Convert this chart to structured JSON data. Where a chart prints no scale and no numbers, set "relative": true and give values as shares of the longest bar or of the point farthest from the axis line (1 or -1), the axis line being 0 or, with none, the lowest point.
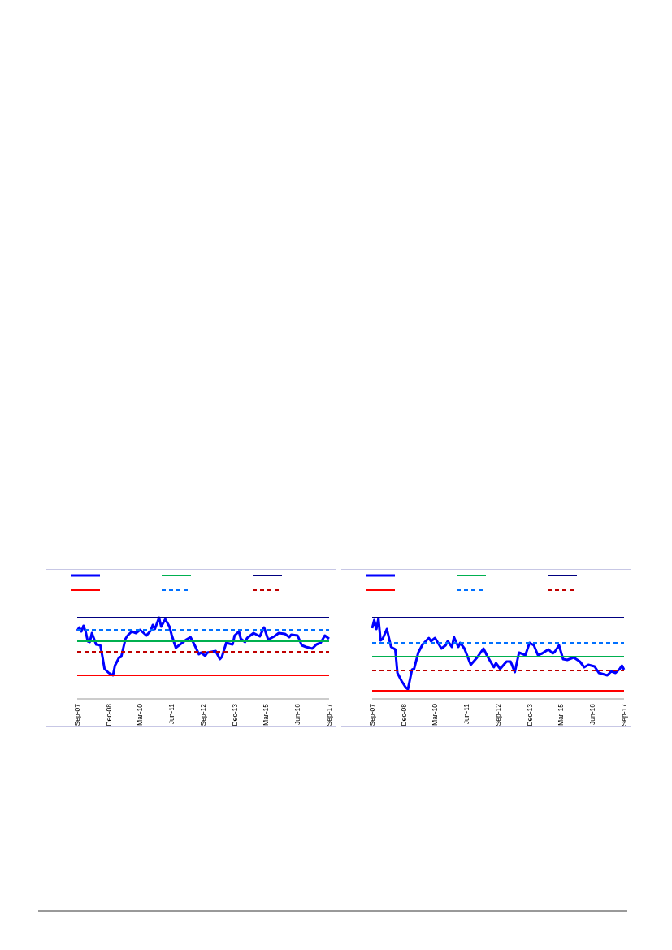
{
  "chart_data": [
    {
      "type": "line",
      "relative": true,
      "tick_labels": "x",
      "xlim": [
        "2007-09",
        "2017-09"
      ],
      "xticks": [
        {
          "value": "2007-09",
          "label": "Sep-07"
        },
        {
          "value": "2008-12",
          "label": "Dec-08"
        },
        {
          "value": "2010-03",
          "label": "Mar-10"
        },
        {
          "value": "2011-06",
          "label": "Jun-11"
        },
        {
          "value": "2012-09",
          "label": "Sep-12"
        },
        {
          "value": "2013-12",
          "label": "Dec-13"
        },
        {
          "value": "2015-03",
          "label": "Mar-15"
        },
        {
          "value": "2016-06",
          "label": "Jun-16"
        },
        {
          "value": "2017-09",
          "label": "Sep-17"
        }
      ],
      "series": [
        {
          "color": "#0000ff",
          "x": [
            "2007-09",
            "2007-10",
            "2007-11",
            "2007-12",
            "2008-01",
            "2008-02",
            "2008-03",
            "2008-04",
            "2008-06",
            "2008-08",
            "2008-09",
            "2008-10",
            "2008-12",
            "2009-02",
            "2009-03",
            "2009-05",
            "2009-06",
            "2009-08",
            "2009-09",
            "2009-11",
            "2010-01",
            "2010-03",
            "2010-06",
            "2010-08",
            "2010-09",
            "2010-10",
            "2010-12",
            "2011-01",
            "2011-03",
            "2011-05",
            "2011-06",
            "2011-08",
            "2011-10",
            "2012-01",
            "2012-03",
            "2012-05",
            "2012-07",
            "2012-08",
            "2012-10",
            "2012-11",
            "2013-03",
            "2013-05",
            "2013-06",
            "2013-08",
            "2013-11",
            "2013-12",
            "2014-02",
            "2014-03",
            "2014-05",
            "2014-06",
            "2014-09",
            "2014-12",
            "2015-02",
            "2015-04",
            "2015-07",
            "2015-09",
            "2015-12",
            "2016-02",
            "2016-03",
            "2016-06",
            "2016-08",
            "2016-10",
            "2017-01",
            "2017-03",
            "2017-05",
            "2017-07",
            "2017-09"
          ],
          "values": [
            0.84,
            0.88,
            0.83,
            0.9,
            0.83,
            0.71,
            0.7,
            0.81,
            0.67,
            0.66,
            0.52,
            0.37,
            0.32,
            0.29,
            0.41,
            0.51,
            0.52,
            0.74,
            0.78,
            0.83,
            0.81,
            0.85,
            0.78,
            0.84,
            0.91,
            0.86,
            1.0,
            0.89,
            0.98,
            0.89,
            0.79,
            0.63,
            0.67,
            0.73,
            0.76,
            0.66,
            0.55,
            0.57,
            0.53,
            0.57,
            0.59,
            0.49,
            0.52,
            0.69,
            0.67,
            0.78,
            0.83,
            0.74,
            0.7,
            0.75,
            0.81,
            0.77,
            0.88,
            0.73,
            0.77,
            0.81,
            0.8,
            0.76,
            0.79,
            0.78,
            0.66,
            0.64,
            0.62,
            0.67,
            0.69,
            0.78,
            0.74
          ]
        },
        {
          "color": "#00b050",
          "x": [
            "2007-09",
            "2017-09"
          ],
          "values": [
            0.71,
            0.71
          ]
        },
        {
          "color": "#000080",
          "x": [
            "2007-09",
            "2017-09"
          ],
          "values": [
            1.0,
            1.0
          ]
        },
        {
          "color": "#ff0000",
          "x": [
            "2007-09",
            "2017-09"
          ],
          "values": [
            0.29,
            0.29
          ]
        },
        {
          "color": "#0070ff",
          "x": [
            "2007-09",
            "2017-09"
          ],
          "values": [
            0.85,
            0.85
          ],
          "line_style": "dashed"
        },
        {
          "color": "#c00000",
          "x": [
            "2007-09",
            "2017-09"
          ],
          "values": [
            0.58,
            0.58
          ],
          "line_style": "dashed"
        }
      ]
    },
    {
      "type": "line",
      "relative": true,
      "tick_labels": "x",
      "xlim": [
        "2007-09",
        "2017-09"
      ],
      "xticks": [
        {
          "value": "2007-09",
          "label": "Sep-07"
        },
        {
          "value": "2008-12",
          "label": "Dec-08"
        },
        {
          "value": "2010-03",
          "label": "Mar-10"
        },
        {
          "value": "2011-06",
          "label": "Jun-11"
        },
        {
          "value": "2012-09",
          "label": "Sep-12"
        },
        {
          "value": "2013-12",
          "label": "Dec-13"
        },
        {
          "value": "2015-03",
          "label": "Mar-15"
        },
        {
          "value": "2016-06",
          "label": "Jun-16"
        },
        {
          "value": "2017-09",
          "label": "Sep-17"
        }
      ],
      "series": [
        {
          "color": "#0000ff",
          "x": [
            "2007-09",
            "2007-10",
            "2007-11",
            "2007-12",
            "2008-01",
            "2008-02",
            "2008-04",
            "2008-06",
            "2008-08",
            "2008-09",
            "2008-11",
            "2009-01",
            "2009-02",
            "2009-04",
            "2009-05",
            "2009-07",
            "2009-09",
            "2009-12",
            "2010-01",
            "2010-03",
            "2010-06",
            "2010-08",
            "2010-09",
            "2010-11",
            "2010-12",
            "2011-02",
            "2011-03",
            "2011-05",
            "2011-08",
            "2011-11",
            "2012-02",
            "2012-04",
            "2012-07",
            "2012-08",
            "2012-10",
            "2013-01",
            "2013-03",
            "2013-05",
            "2013-07",
            "2013-10",
            "2013-12",
            "2014-02",
            "2014-04",
            "2014-06",
            "2014-09",
            "2014-11",
            "2014-12",
            "2015-02",
            "2015-04",
            "2015-06",
            "2015-09",
            "2015-12",
            "2016-02",
            "2016-04",
            "2016-07",
            "2016-09",
            "2017-01",
            "2017-03",
            "2017-05",
            "2017-07",
            "2017-08",
            "2017-09"
          ],
          "values": [
            0.87,
            0.97,
            0.86,
            0.99,
            0.72,
            0.74,
            0.86,
            0.64,
            0.61,
            0.32,
            0.22,
            0.14,
            0.12,
            0.36,
            0.37,
            0.57,
            0.67,
            0.75,
            0.71,
            0.75,
            0.62,
            0.66,
            0.71,
            0.64,
            0.76,
            0.64,
            0.69,
            0.62,
            0.42,
            0.51,
            0.62,
            0.52,
            0.39,
            0.44,
            0.37,
            0.46,
            0.46,
            0.33,
            0.57,
            0.54,
            0.69,
            0.66,
            0.54,
            0.56,
            0.61,
            0.56,
            0.58,
            0.66,
            0.49,
            0.48,
            0.51,
            0.46,
            0.39,
            0.42,
            0.4,
            0.32,
            0.29,
            0.34,
            0.32,
            0.37,
            0.41,
            0.36
          ]
        },
        {
          "color": "#00b050",
          "x": [
            "2007-09",
            "2017-09"
          ],
          "values": [
            0.52,
            0.52
          ]
        },
        {
          "color": "#000080",
          "x": [
            "2007-09",
            "2017-09"
          ],
          "values": [
            1.0,
            1.0
          ]
        },
        {
          "color": "#ff0000",
          "x": [
            "2007-09",
            "2017-09"
          ],
          "values": [
            0.1,
            0.1
          ]
        },
        {
          "color": "#0070ff",
          "x": [
            "2007-09",
            "2017-09"
          ],
          "values": [
            0.69,
            0.69
          ],
          "line_style": "dashed"
        },
        {
          "color": "#c00000",
          "x": [
            "2007-09",
            "2017-09"
          ],
          "values": [
            0.35,
            0.35
          ],
          "line_style": "dashed"
        }
      ]
    }
  ]
}
